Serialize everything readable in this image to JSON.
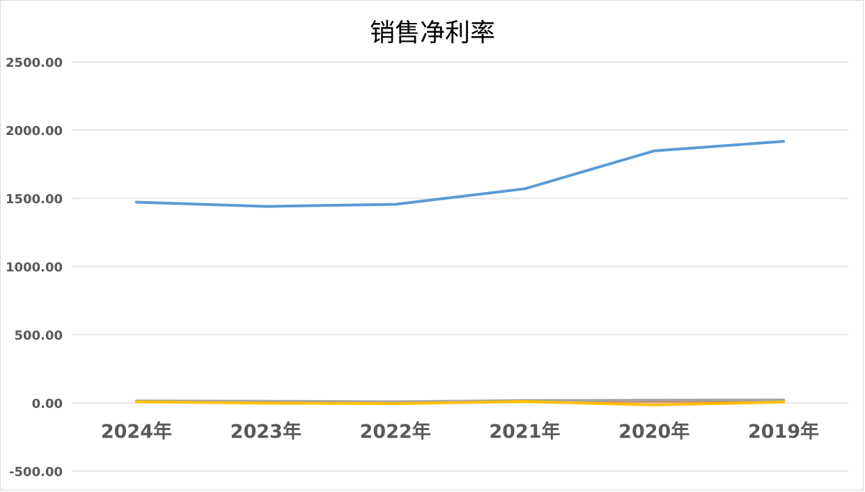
{
  "chart_data": {
    "type": "line",
    "title": "销售净利率",
    "categories": [
      "2024年",
      "2023年",
      "2022年",
      "2021年",
      "2020年",
      "2019年"
    ],
    "ylim": [
      -500,
      2500
    ],
    "yticks": [
      "2500.00",
      "2000.00",
      "1500.00",
      "1000.00",
      "500.00",
      "0.00",
      "-500.00"
    ],
    "grid": true,
    "legend": "none",
    "series": [
      {
        "color": "#5b9bd5",
        "values": [
          1472,
          1441,
          1456,
          1570,
          1848,
          1918
        ]
      },
      {
        "color": "#ed7d31",
        "values": [
          12,
          8,
          5,
          14,
          12,
          15
        ]
      },
      {
        "color": "#a5a5a5",
        "values": [
          15,
          12,
          8,
          18,
          20,
          22
        ]
      },
      {
        "color": "#ffc000",
        "values": [
          8,
          -2,
          -5,
          10,
          -15,
          6
        ]
      }
    ]
  }
}
